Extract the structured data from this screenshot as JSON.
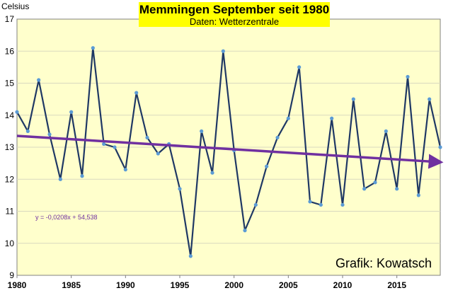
{
  "chart_data": {
    "type": "line",
    "title": "Memmingen September seit 1980",
    "subtitle": "Daten:  Wetterzentrale",
    "ylabel": "Celsius",
    "xlabel": "",
    "credit": "Grafik: Kowatsch",
    "trend_equation": "y = -0,0208x + 54,538",
    "xlim": [
      1980,
      2019
    ],
    "ylim": [
      9,
      17
    ],
    "xticks": [
      1980,
      1985,
      1990,
      1995,
      2000,
      2005,
      2010,
      2015
    ],
    "yticks": [
      9,
      10,
      11,
      12,
      13,
      14,
      15,
      16,
      17
    ],
    "grid": "horizontal",
    "series": [
      {
        "x": [
          1980,
          1981,
          1982,
          1983,
          1984,
          1985,
          1986,
          1987,
          1988,
          1989,
          1990,
          1991,
          1992,
          1993,
          1994,
          1995,
          1996,
          1997,
          1998,
          1999,
          2000,
          2001,
          2002,
          2003,
          2004,
          2005,
          2006,
          2007,
          2008,
          2009,
          2010,
          2011,
          2012,
          2013,
          2014,
          2015,
          2016,
          2017,
          2018,
          2019
        ],
        "values": [
          14.1,
          13.5,
          15.1,
          13.4,
          12.0,
          14.1,
          12.1,
          16.1,
          13.1,
          13.0,
          12.3,
          14.7,
          13.3,
          12.8,
          13.1,
          11.7,
          9.6,
          13.5,
          12.2,
          16.0,
          12.9,
          10.4,
          11.2,
          12.4,
          13.3,
          13.9,
          15.5,
          11.3,
          11.2,
          13.9,
          11.2,
          14.5,
          11.7,
          11.9,
          13.5,
          11.7,
          15.2,
          11.5,
          14.5,
          13.0
        ]
      }
    ],
    "trend": {
      "slope": -0.0208,
      "intercept": 54.538
    },
    "colors": {
      "background": "#ffffcc",
      "line": "#1f3864",
      "marker": "#5b9bd5",
      "trend": "#7030a0",
      "title_box": "#ffff00",
      "grid": "#d9d9bf"
    }
  }
}
